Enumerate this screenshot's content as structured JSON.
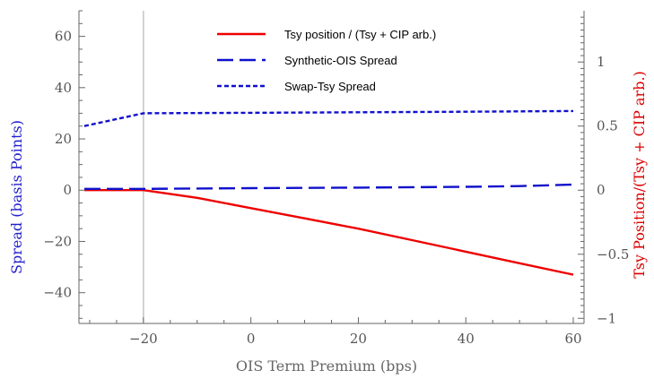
{
  "chart_data": {
    "type": "line",
    "xlabel": "OIS Term Premium (bps)",
    "ylabel_left": "Spread (basis Points)",
    "ylabel_right": "Tsy Position/(Tsy + CIP arb.)",
    "xlim": [
      -32,
      62
    ],
    "ylim_left": [
      -52,
      70
    ],
    "ylim_right": [
      -1.04,
      1.4
    ],
    "x_ticks": [
      -20,
      0,
      20,
      40,
      60
    ],
    "y_left_ticks": [
      -40,
      -20,
      0,
      20,
      40,
      60
    ],
    "y_right_ticks": [
      -1,
      -0.5,
      0,
      0.5,
      1
    ],
    "vertical_reference_x": -20,
    "grid": false,
    "legend_position": "top-center",
    "colors": {
      "left_axis": "#1f1fcc",
      "right_axis": "#dd0000",
      "ticks": "#555555"
    },
    "series": [
      {
        "name": "Tsy position / (Tsy + CIP arb.)",
        "axis": "right",
        "color": "#ee0000",
        "style": "solid",
        "x": [
          -31,
          -20,
          -10,
          0,
          10,
          20,
          30,
          40,
          50,
          60
        ],
        "y": [
          0,
          0,
          -0.06,
          -0.14,
          -0.22,
          -0.3,
          -0.39,
          -0.48,
          -0.57,
          -0.66
        ]
      },
      {
        "name": "Synthetic-OIS Spread",
        "axis": "left",
        "color": "#1010cc",
        "style": "longdash",
        "x": [
          -31,
          -20,
          0,
          20,
          40,
          50,
          60
        ],
        "y": [
          0.5,
          0.5,
          0.8,
          1.0,
          1.3,
          1.6,
          2.2
        ]
      },
      {
        "name": "Swap-Tsy Spread",
        "axis": "left",
        "color": "#1010cc",
        "style": "shortdash",
        "x": [
          -31,
          -20,
          0,
          20,
          40,
          60
        ],
        "y": [
          25,
          30,
          30.2,
          30.4,
          30.6,
          30.9
        ]
      }
    ]
  }
}
